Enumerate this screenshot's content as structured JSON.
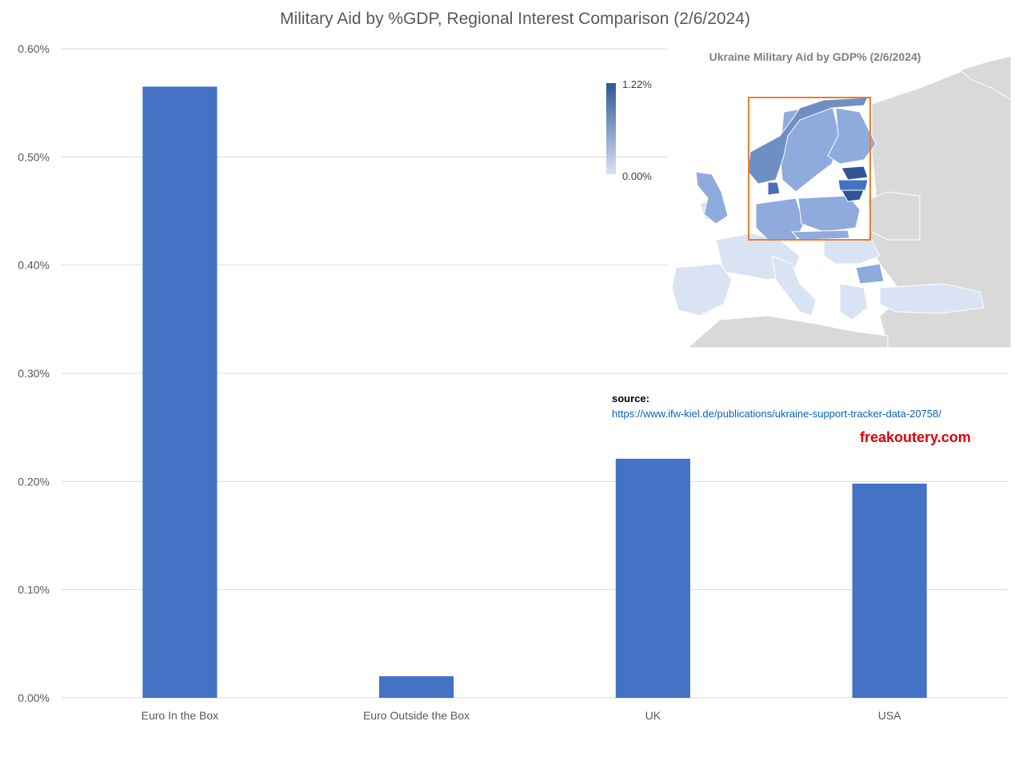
{
  "chart_data": {
    "type": "bar",
    "title": "Military Aid by %GDP, Regional Interest Comparison (2/6/2024)",
    "categories": [
      "Euro In the Box",
      "Euro Outside the Box",
      "UK",
      "USA"
    ],
    "values": [
      0.565,
      0.02,
      0.221,
      0.198
    ],
    "ylim": [
      0,
      0.6
    ],
    "yticks": [
      "0.00%",
      "0.10%",
      "0.20%",
      "0.30%",
      "0.40%",
      "0.50%",
      "0.60%"
    ],
    "unit": "%",
    "grid": true,
    "colors": {
      "bar": "#4472c4",
      "grid": "#d9d9d9",
      "text": "#595959"
    }
  },
  "inset_map": {
    "title": "Ukraine Military Aid by GDP% (2/6/2024)",
    "legend_max": "1.22%",
    "legend_min": "0.00%",
    "colors": {
      "max": "#2f5597",
      "min": "#dae3f3",
      "land": "#d9d9d9",
      "box": "#ed7d31"
    }
  },
  "source": {
    "label": "source:",
    "url": "https://www.ifw-kiel.de/publications/ukraine-support-tracker-data-20758/"
  },
  "brand": "freakoutery.com"
}
